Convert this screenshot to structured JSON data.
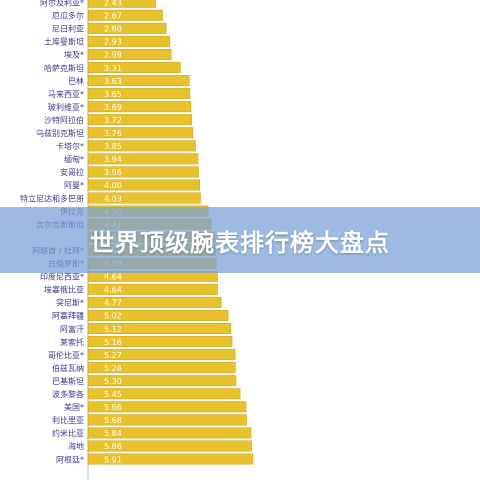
{
  "banner": {
    "text": "世界顶级腕表排行榜大盘点"
  },
  "colors": {
    "bar": "#e8c12c",
    "bar_stroke": "#c9a21a",
    "label": "#3a3a8c",
    "banner": "#78a0d7"
  },
  "chart_data": {
    "type": "bar",
    "orientation": "horizontal",
    "categories": [
      "阿尔及利亚*",
      "厄瓜多尔",
      "尼日利亚",
      "土库曼斯坦",
      "埃及*",
      "哈萨克斯坦",
      "巴林",
      "马来西亚*",
      "玻利维亚*",
      "沙特阿拉伯",
      "乌兹别克斯坦",
      "卡塔尔*",
      "缅甸*",
      "安哥拉",
      "阿曼*",
      "特立尼达和多巴哥",
      "伊拉克",
      "吉尔吉斯斯坦",
      "",
      "阿联酋 / 杜拜*",
      "白俄罗斯*",
      "印度尼西亚*",
      "埃塞俄比亚",
      "突尼斯*",
      "阿塞拜疆",
      "阿富汗",
      "莱索托",
      "哥伦比亚*",
      "伯兹瓦纳",
      "巴基斯坦",
      "波多黎各",
      "美国*",
      "利比里亚",
      "约米比亚",
      "海地",
      "阿根廷*"
    ],
    "values": [
      "2.43",
      "2.67",
      "2.80",
      "2.93",
      "2.98",
      "3.31",
      "3.63",
      "3.65",
      "3.69",
      "3.72",
      "3.76",
      "3.85",
      "3.94",
      "3.96",
      "4.00",
      "4.03",
      "4.30",
      "4.41",
      "4.55",
      "4.58",
      "4.59",
      "4.64",
      "4.64",
      "4.77",
      "5.02",
      "5.12",
      "5.16",
      "5.27",
      "5.28",
      "5.30",
      "5.45",
      "5.66",
      "5.68",
      "5.84",
      "5.86",
      "5.91"
    ],
    "xlim": [
      0,
      6.2
    ],
    "grid": false
  }
}
